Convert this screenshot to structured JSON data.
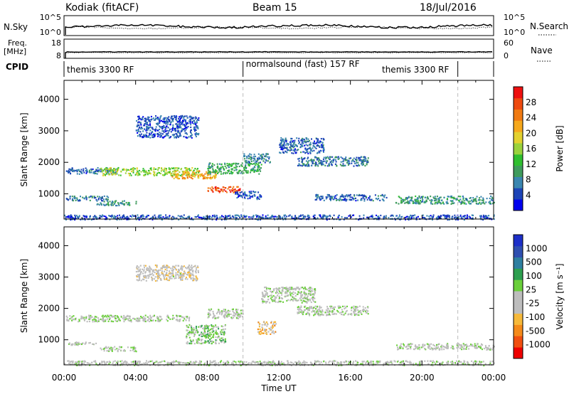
{
  "header": {
    "station": "Kodiak (fitACF)",
    "beam": "Beam 15",
    "date": "18/Jul/2016"
  },
  "params": {
    "nsky_label": "N.Sky",
    "nsky_ticks": [
      "10^5",
      "10^0"
    ],
    "nsearch_label": "N.Search",
    "nsearch_ticks": [
      "10^5",
      "10^0"
    ],
    "freq_label": "Freq.",
    "freq_unit": "[MHz]",
    "freq_ticks": [
      "18",
      "8"
    ],
    "nave_label": "Nave",
    "nave_ticks": [
      "60",
      "0"
    ],
    "cpid_label": "CPID",
    "cpid_segments": [
      {
        "label": "themis 3300 RF",
        "start": 0,
        "end": 10
      },
      {
        "label": "normalsound (fast) 157 RF",
        "start": 10,
        "end": 22
      },
      {
        "label": "themis 3300 RF",
        "start": 22,
        "end": 24
      }
    ]
  },
  "chart_data": [
    {
      "type": "heatmap",
      "panel": "power",
      "xlabel": "Time UT",
      "ylabel": "Slant Range [km]",
      "xlim": [
        0,
        24
      ],
      "ylim": [
        200,
        4600
      ],
      "x_ticks": [
        "00:00",
        "04:00",
        "08:00",
        "12:00",
        "16:00",
        "20:00",
        "00:00"
      ],
      "y_ticks": [
        "1000",
        "2000",
        "3000",
        "4000"
      ],
      "colorbar": {
        "label": "Power [dB]",
        "ticks": [
          "4",
          "8",
          "12",
          "16",
          "20",
          "24",
          "28"
        ],
        "colors": [
          "#0000ee",
          "#1d44b7",
          "#3a86b0",
          "#3f9b5d",
          "#2fbf2f",
          "#9ad23c",
          "#e3d12f",
          "#f6a81c",
          "#f07a12",
          "#ee4a10",
          "#ee1010"
        ],
        "range": [
          0,
          32
        ]
      },
      "echo_regions": [
        {
          "t": [
            0.1,
            3.0
          ],
          "range": [
            1650,
            1850
          ],
          "value": 6
        },
        {
          "t": [
            0.1,
            2.5
          ],
          "range": [
            800,
            950
          ],
          "value": 7
        },
        {
          "t": [
            1.8,
            4.0
          ],
          "range": [
            650,
            800
          ],
          "value": 9
        },
        {
          "t": [
            2.0,
            7.5
          ],
          "range": [
            1600,
            1850
          ],
          "value": 16
        },
        {
          "t": [
            6.0,
            8.5
          ],
          "range": [
            1500,
            1750
          ],
          "value": 22
        },
        {
          "t": [
            4.0,
            7.5
          ],
          "range": [
            2800,
            3500
          ],
          "value": 5
        },
        {
          "t": [
            8.0,
            9.8
          ],
          "range": [
            1050,
            1250
          ],
          "value": 27
        },
        {
          "t": [
            8.0,
            11.0
          ],
          "range": [
            1650,
            2000
          ],
          "value": 11
        },
        {
          "t": [
            10.0,
            11.5
          ],
          "range": [
            2000,
            2300
          ],
          "value": 7
        },
        {
          "t": [
            12.0,
            14.5
          ],
          "range": [
            2300,
            2800
          ],
          "value": 6
        },
        {
          "t": [
            13.0,
            17.0
          ],
          "range": [
            1900,
            2200
          ],
          "value": 7
        },
        {
          "t": [
            9.5,
            11.0
          ],
          "range": [
            850,
            1100
          ],
          "value": 5
        },
        {
          "t": [
            14.0,
            18.0
          ],
          "range": [
            800,
            1000
          ],
          "value": 6
        },
        {
          "t": [
            18.5,
            24.0
          ],
          "range": [
            700,
            950
          ],
          "value": 9
        },
        {
          "t": [
            0.0,
            24.0
          ],
          "range": [
            200,
            350
          ],
          "value": 5
        }
      ]
    },
    {
      "type": "heatmap",
      "panel": "velocity",
      "xlabel": "Time UT",
      "ylabel": "Slant Range [km]",
      "xlim": [
        0,
        24
      ],
      "ylim": [
        200,
        4600
      ],
      "x_ticks": [
        "00:00",
        "04:00",
        "08:00",
        "12:00",
        "16:00",
        "20:00",
        "00:00"
      ],
      "y_ticks": [
        "1000",
        "2000",
        "3000",
        "4000"
      ],
      "colorbar": {
        "label": "Velocity [m s⁻¹]",
        "ticks": [
          "1000",
          "500",
          "100",
          "25",
          "-25",
          "-100",
          "-500",
          "-1000"
        ],
        "colors": [
          "#ee0000",
          "#f04f10",
          "#f48a1a",
          "#f6b93a",
          "#bdbdbd",
          "#bdbdbd",
          "#6acf3a",
          "#2d9f4f",
          "#2e7fa0",
          "#2f4fb0",
          "#1d2fc8"
        ],
        "range": [
          -1200,
          1200
        ]
      },
      "echo_regions": [
        {
          "t": [
            0.1,
            7.0
          ],
          "range": [
            1600,
            1800
          ],
          "value": 0
        },
        {
          "t": [
            0.2,
            2.0
          ],
          "range": [
            850,
            950
          ],
          "value": 0
        },
        {
          "t": [
            2.0,
            4.0
          ],
          "range": [
            650,
            800
          ],
          "value": 0
        },
        {
          "t": [
            4.0,
            7.5
          ],
          "range": [
            2900,
            3400
          ],
          "value": -150
        },
        {
          "t": [
            6.8,
            9.0
          ],
          "range": [
            900,
            1500
          ],
          "value": 180
        },
        {
          "t": [
            8.0,
            10.0
          ],
          "range": [
            1700,
            2000
          ],
          "value": -60
        },
        {
          "t": [
            10.8,
            11.8
          ],
          "range": [
            1200,
            1600
          ],
          "value": -400
        },
        {
          "t": [
            11.0,
            14.0
          ],
          "range": [
            2200,
            2700
          ],
          "value": 0
        },
        {
          "t": [
            13.0,
            17.0
          ],
          "range": [
            1800,
            2100
          ],
          "value": 0
        },
        {
          "t": [
            18.5,
            24.0
          ],
          "range": [
            700,
            900
          ],
          "value": 0
        },
        {
          "t": [
            0.0,
            24.0
          ],
          "range": [
            200,
            350
          ],
          "value": -60
        }
      ]
    }
  ]
}
